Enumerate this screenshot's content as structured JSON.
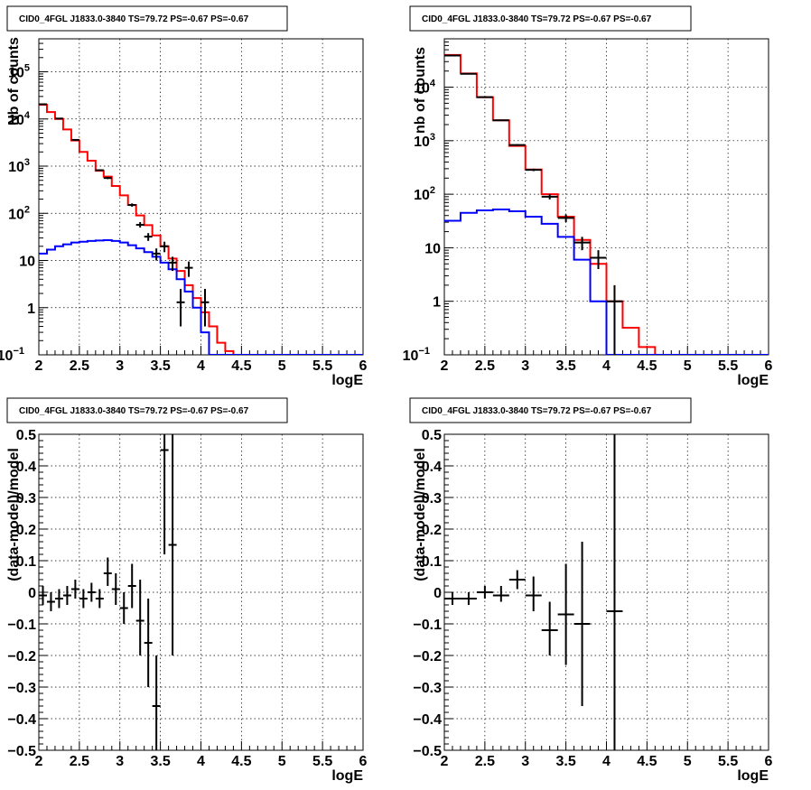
{
  "chart_data": [
    {
      "type": "line",
      "title": "CID0_4FGL J1833.0-3840 TS=79.72 PS=-0.67 PS=-0.67",
      "xlabel": "logE",
      "ylabel": "Nb of counts",
      "xlim": [
        2,
        6
      ],
      "ylim": [
        0.1,
        500000
      ],
      "log_y": true,
      "grid": true,
      "x_ticks": [
        "2",
        "2.5",
        "3",
        "3.5",
        "4",
        "4.5",
        "5",
        "5.5",
        "6"
      ],
      "y_ticks": [
        {
          "value": 0.1,
          "label": "10",
          "exp": "−1"
        },
        {
          "value": 1,
          "label": "1",
          "exp": ""
        },
        {
          "value": 10,
          "label": "10",
          "exp": ""
        },
        {
          "value": 100,
          "label": "10",
          "exp": "2"
        },
        {
          "value": 1000,
          "label": "10",
          "exp": "3"
        },
        {
          "value": 10000,
          "label": "10",
          "exp": "4"
        },
        {
          "value": 100000,
          "label": "10",
          "exp": "5"
        }
      ],
      "bin_edges": [
        2.0,
        2.1,
        2.2,
        2.3,
        2.4,
        2.5,
        2.6,
        2.7,
        2.8,
        2.9,
        3.0,
        3.1,
        3.2,
        3.3,
        3.4,
        3.5,
        3.6,
        3.7,
        3.8,
        3.9,
        4.0,
        4.1,
        4.2,
        4.3,
        4.4,
        4.5,
        4.6,
        4.7,
        4.8,
        4.9,
        5.0,
        5.1,
        5.2,
        5.3,
        5.4,
        5.5,
        5.6,
        5.7,
        5.8,
        5.9,
        6.0
      ],
      "series": [
        {
          "color": "#ff0000",
          "kind": "step",
          "values": [
            20000,
            14000,
            10000,
            6000,
            3500,
            2000,
            1300,
            800,
            600,
            380,
            240,
            150,
            90,
            56,
            34,
            20,
            11,
            6,
            3,
            1.6,
            0.8,
            0.4,
            0.18,
            0.12,
            0.1,
            0.1,
            0.1,
            0.1,
            0.1,
            0.1,
            0.1,
            0.1,
            0.1,
            0.1,
            0.1,
            0.1,
            0.1,
            0.1,
            0.1,
            0.1
          ]
        },
        {
          "color": "#0000ff",
          "kind": "step",
          "values": [
            14,
            17,
            20,
            22,
            24,
            25,
            26,
            26.5,
            27,
            26,
            24,
            21,
            18,
            15,
            12,
            9,
            6.5,
            4,
            2.2,
            1,
            0.3,
            0.1,
            0.1,
            0.1,
            0.1,
            0.1,
            0.1,
            0.1,
            0.1,
            0.1,
            0.1,
            0.1,
            0.1,
            0.1,
            0.1,
            0.1,
            0.1,
            0.1,
            0.1,
            0.1
          ]
        },
        {
          "color": "#000000",
          "kind": "points",
          "points": [
            {
              "x": 2.05,
              "y": 20500,
              "ylo": 20300,
              "yhi": 20700
            },
            {
              "x": 2.25,
              "y": 10200,
              "ylo": 10050,
              "yhi": 10350
            },
            {
              "x": 2.45,
              "y": 3600,
              "ylo": 3500,
              "yhi": 3700
            },
            {
              "x": 2.75,
              "y": 820,
              "ylo": 790,
              "yhi": 850
            },
            {
              "x": 2.85,
              "y": 560,
              "ylo": 530,
              "yhi": 590
            },
            {
              "x": 3.15,
              "y": 150,
              "ylo": 138,
              "yhi": 162
            },
            {
              "x": 3.25,
              "y": 57,
              "ylo": 50,
              "yhi": 65
            },
            {
              "x": 3.35,
              "y": 32,
              "ylo": 26,
              "yhi": 38
            },
            {
              "x": 3.45,
              "y": 14,
              "ylo": 10,
              "yhi": 18
            },
            {
              "x": 3.55,
              "y": 20,
              "ylo": 15,
              "yhi": 25
            },
            {
              "x": 3.65,
              "y": 9,
              "ylo": 6,
              "yhi": 12
            },
            {
              "x": 3.75,
              "y": 1.3,
              "ylo": 0.4,
              "yhi": 2.5
            },
            {
              "x": 3.85,
              "y": 7,
              "ylo": 4.5,
              "yhi": 9.5
            },
            {
              "x": 4.05,
              "y": 1.3,
              "ylo": 0.4,
              "yhi": 2.5
            }
          ]
        }
      ]
    },
    {
      "type": "line",
      "title": "CID0_4FGL J1833.0-3840 TS=79.72 PS=-0.67 PS=-0.67",
      "xlabel": "logE",
      "ylabel": "nb of counts",
      "xlim": [
        2,
        6
      ],
      "ylim": [
        0.1,
        80000
      ],
      "log_y": true,
      "grid": true,
      "x_ticks": [
        "2",
        "2.5",
        "3",
        "3.5",
        "4",
        "4.5",
        "5",
        "5.5",
        "6"
      ],
      "y_ticks": [
        {
          "value": 0.1,
          "label": "10",
          "exp": "−1"
        },
        {
          "value": 1,
          "label": "1",
          "exp": ""
        },
        {
          "value": 10,
          "label": "10",
          "exp": ""
        },
        {
          "value": 100,
          "label": "10",
          "exp": "2"
        },
        {
          "value": 1000,
          "label": "10",
          "exp": "3"
        },
        {
          "value": 10000,
          "label": "10",
          "exp": "4"
        }
      ],
      "bin_edges": [
        2.0,
        2.2,
        2.4,
        2.6,
        2.8,
        3.0,
        3.2,
        3.4,
        3.6,
        3.8,
        4.0,
        4.2,
        4.4,
        4.6,
        4.8,
        5.0,
        5.2,
        5.4,
        5.6,
        5.8,
        6.0
      ],
      "series": [
        {
          "color": "#ff0000",
          "kind": "step",
          "values": [
            40000,
            18000,
            6500,
            2400,
            800,
            290,
            100,
            38,
            14,
            5,
            1,
            0.32,
            0.14,
            0.1,
            0.1,
            0.1,
            0.1,
            0.1,
            0.1,
            0.1
          ]
        },
        {
          "color": "#0000ff",
          "kind": "step",
          "values": [
            32,
            45,
            50,
            52,
            48,
            38,
            28,
            16,
            6,
            1,
            0.1,
            0.1,
            0.1,
            0.1,
            0.1,
            0.1,
            0.1,
            0.1,
            0.1,
            0.1
          ]
        },
        {
          "color": "#000000",
          "kind": "points",
          "points": [
            {
              "x": 2.1,
              "y": 39000,
              "ylo": 38700,
              "yhi": 39300
            },
            {
              "x": 2.3,
              "y": 17800,
              "ylo": 17600,
              "yhi": 18000
            },
            {
              "x": 2.5,
              "y": 6500,
              "ylo": 6400,
              "yhi": 6600
            },
            {
              "x": 2.7,
              "y": 2400,
              "ylo": 2350,
              "yhi": 2450
            },
            {
              "x": 2.9,
              "y": 830,
              "ylo": 800,
              "yhi": 860
            },
            {
              "x": 3.1,
              "y": 285,
              "ylo": 270,
              "yhi": 300
            },
            {
              "x": 3.3,
              "y": 90,
              "ylo": 80,
              "yhi": 100
            },
            {
              "x": 3.5,
              "y": 36,
              "ylo": 30,
              "yhi": 42
            },
            {
              "x": 3.7,
              "y": 12.5,
              "ylo": 9,
              "yhi": 16
            },
            {
              "x": 3.9,
              "y": 6.5,
              "ylo": 4,
              "yhi": 9
            },
            {
              "x": 4.1,
              "y": 1,
              "ylo": 0.1,
              "yhi": 2
            }
          ]
        }
      ]
    },
    {
      "type": "scatter",
      "title": "CID0_4FGL J1833.0-3840 TS=79.72 PS=-0.67 PS=-0.67",
      "xlabel": "logE",
      "ylabel": "(data-model)/model",
      "xlim": [
        2,
        6
      ],
      "ylim": [
        -0.5,
        0.5
      ],
      "log_y": false,
      "grid": true,
      "x_ticks": [
        "2",
        "2.5",
        "3",
        "3.5",
        "4",
        "4.5",
        "5",
        "5.5",
        "6"
      ],
      "y_tick_values": [
        -0.5,
        -0.4,
        -0.3,
        -0.2,
        -0.1,
        0,
        0.1,
        0.2,
        0.3,
        0.4,
        0.5
      ],
      "y_tick_labels": [
        "−0.5",
        "−0.4",
        "−0.3",
        "−0.2",
        "−0.1",
        "0",
        "0.1",
        "0.2",
        "0.3",
        "0.4",
        "0.5"
      ],
      "series": [
        {
          "color": "#000000",
          "kind": "points",
          "points": [
            {
              "x": 2.05,
              "y": -0.01,
              "ylo": -0.04,
              "yhi": 0.02
            },
            {
              "x": 2.15,
              "y": -0.03,
              "ylo": -0.06,
              "yhi": 0.0
            },
            {
              "x": 2.25,
              "y": -0.02,
              "ylo": -0.05,
              "yhi": 0.01
            },
            {
              "x": 2.35,
              "y": -0.01,
              "ylo": -0.04,
              "yhi": 0.02
            },
            {
              "x": 2.45,
              "y": 0.01,
              "ylo": -0.02,
              "yhi": 0.04
            },
            {
              "x": 2.55,
              "y": -0.02,
              "ylo": -0.05,
              "yhi": 0.01
            },
            {
              "x": 2.65,
              "y": 0.0,
              "ylo": -0.03,
              "yhi": 0.03
            },
            {
              "x": 2.75,
              "y": -0.02,
              "ylo": -0.05,
              "yhi": 0.01
            },
            {
              "x": 2.85,
              "y": 0.06,
              "ylo": 0.02,
              "yhi": 0.11
            },
            {
              "x": 2.95,
              "y": 0.01,
              "ylo": -0.04,
              "yhi": 0.06
            },
            {
              "x": 3.05,
              "y": -0.05,
              "ylo": -0.1,
              "yhi": 0.0
            },
            {
              "x": 3.15,
              "y": 0.02,
              "ylo": -0.05,
              "yhi": 0.09
            },
            {
              "x": 3.25,
              "y": -0.09,
              "ylo": -0.2,
              "yhi": 0.04
            },
            {
              "x": 3.35,
              "y": -0.16,
              "ylo": -0.3,
              "yhi": -0.02
            },
            {
              "x": 3.45,
              "y": -0.36,
              "ylo": -0.5,
              "yhi": -0.2
            },
            {
              "x": 3.55,
              "y": 0.45,
              "ylo": 0.12,
              "yhi": 0.5
            },
            {
              "x": 3.65,
              "y": 0.15,
              "ylo": -0.2,
              "yhi": 0.5
            }
          ]
        }
      ]
    },
    {
      "type": "scatter",
      "title": "CID0_4FGL J1833.0-3840 TS=79.72 PS=-0.67 PS=-0.67",
      "xlabel": "logE",
      "ylabel": "(data-model)/model",
      "xlim": [
        2,
        6
      ],
      "ylim": [
        -0.5,
        0.5
      ],
      "log_y": false,
      "grid": true,
      "x_ticks": [
        "2",
        "2.5",
        "3",
        "3.5",
        "4",
        "4.5",
        "5",
        "5.5",
        "6"
      ],
      "y_tick_values": [
        -0.5,
        -0.4,
        -0.3,
        -0.2,
        -0.1,
        0,
        0.1,
        0.2,
        0.3,
        0.4,
        0.5
      ],
      "y_tick_labels": [
        "−0.5",
        "−0.4",
        "−0.3",
        "−0.2",
        "−0.1",
        "0",
        "0.1",
        "0.2",
        "0.3",
        "0.4",
        "0.5"
      ],
      "series": [
        {
          "color": "#000000",
          "kind": "points",
          "points": [
            {
              "x": 2.1,
              "y": -0.02,
              "ylo": -0.04,
              "yhi": 0.0
            },
            {
              "x": 2.3,
              "y": -0.02,
              "ylo": -0.04,
              "yhi": 0.0
            },
            {
              "x": 2.5,
              "y": 0.0,
              "ylo": -0.02,
              "yhi": 0.02
            },
            {
              "x": 2.7,
              "y": -0.01,
              "ylo": -0.03,
              "yhi": 0.02
            },
            {
              "x": 2.9,
              "y": 0.04,
              "ylo": 0.01,
              "yhi": 0.07
            },
            {
              "x": 3.1,
              "y": -0.01,
              "ylo": -0.06,
              "yhi": 0.05
            },
            {
              "x": 3.3,
              "y": -0.12,
              "ylo": -0.2,
              "yhi": -0.03
            },
            {
              "x": 3.5,
              "y": -0.07,
              "ylo": -0.23,
              "yhi": 0.09
            },
            {
              "x": 3.7,
              "y": -0.1,
              "ylo": -0.36,
              "yhi": 0.16
            },
            {
              "x": 4.1,
              "y": -0.06,
              "ylo": -0.5,
              "yhi": 0.5
            }
          ]
        }
      ]
    }
  ]
}
